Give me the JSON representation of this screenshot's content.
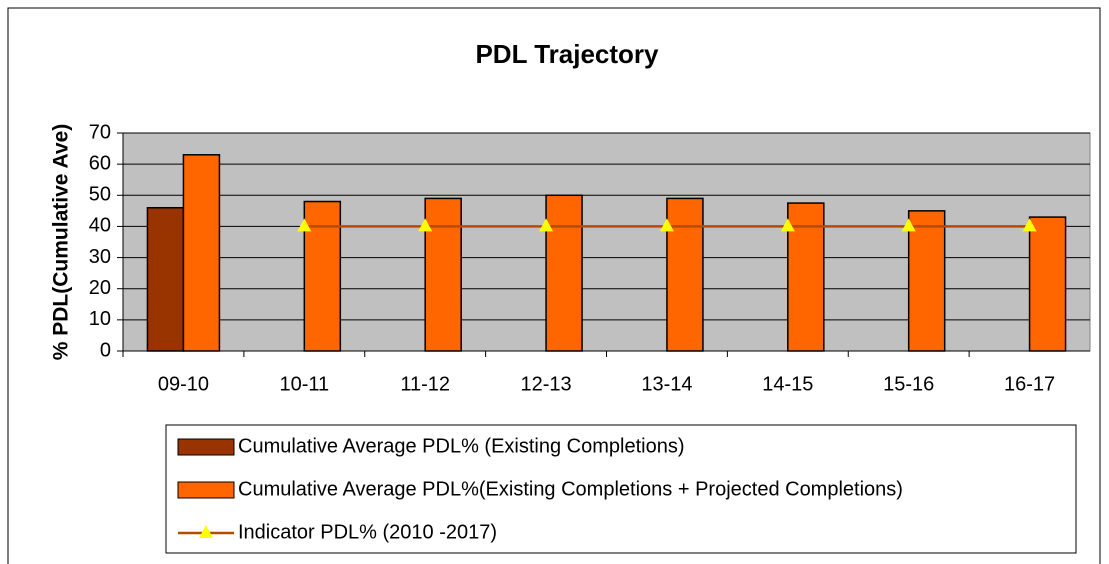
{
  "chart_data": {
    "type": "bar",
    "title": "PDL Trajectory",
    "y_label": "% PDL(Cumulative Ave)",
    "categories": [
      "09-10",
      "10-11",
      "11-12",
      "12-13",
      "13-14",
      "14-15",
      "15-16",
      "16-17"
    ],
    "series": [
      {
        "name": "Cumulative Average PDL% (Existing Completions)",
        "color": "#993300",
        "kind": "bar",
        "values": [
          46,
          null,
          null,
          null,
          null,
          null,
          null,
          null
        ]
      },
      {
        "name": "Cumulative Average PDL%(Existing Completions + Projected Completions)",
        "color": "#ff6600",
        "kind": "bar",
        "values": [
          63,
          48,
          49,
          50,
          49,
          47.5,
          45,
          43
        ]
      },
      {
        "name": "Indicator PDL% (2010 -2017)",
        "color": "#b84a00",
        "marker_color": "#ffff00",
        "kind": "line",
        "values": [
          null,
          40,
          40,
          40,
          40,
          40,
          40,
          40
        ]
      }
    ],
    "ylim": [
      0,
      70
    ],
    "yticks": [
      0,
      10,
      20,
      30,
      40,
      50,
      60,
      70
    ],
    "grid": true,
    "legend": "bottom"
  }
}
